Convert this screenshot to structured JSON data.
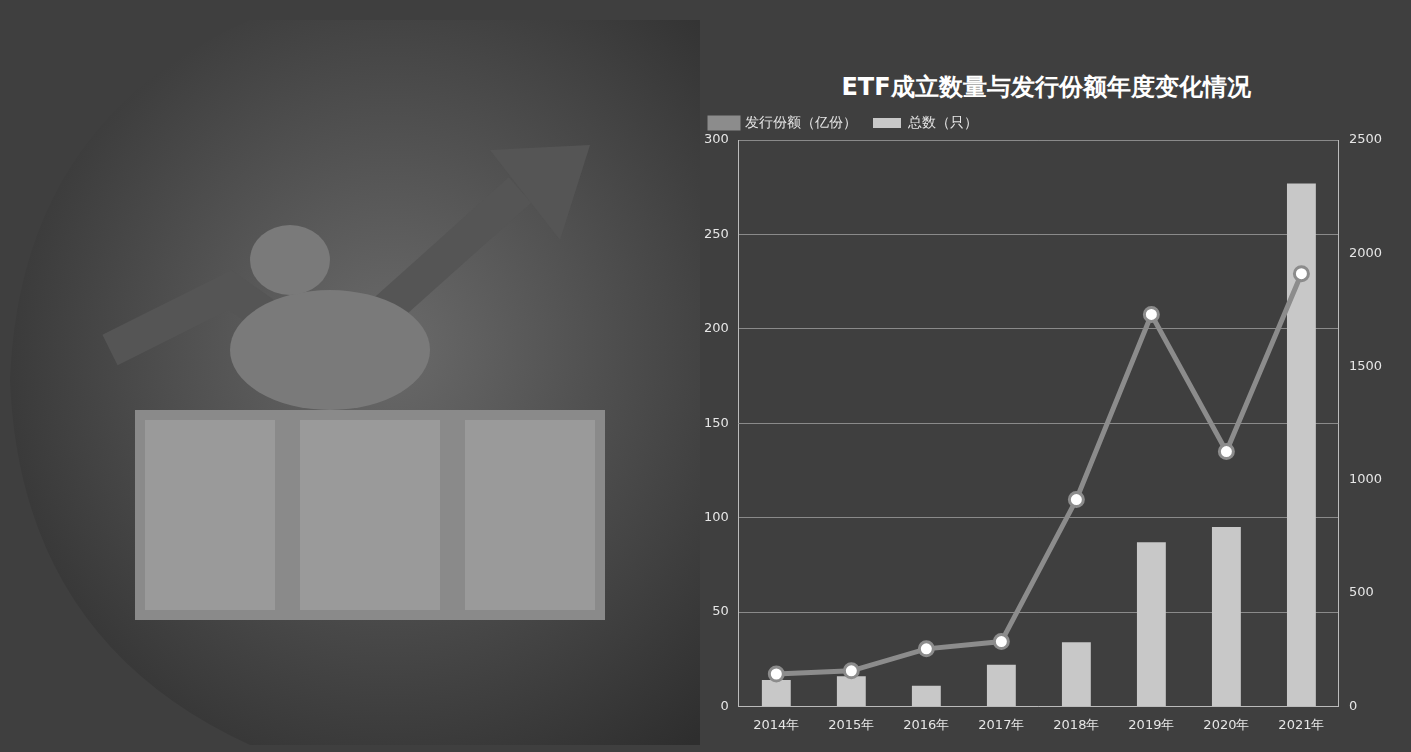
{
  "chart_data": {
    "type": "bar",
    "title": "ETF成立数量与发行份额年度变化情况",
    "categories": [
      "2014年",
      "2015年",
      "2016年",
      "2017年",
      "2018年",
      "2019年",
      "2020年",
      "2021年"
    ],
    "series": [
      {
        "name": "总数（只）",
        "type": "bar",
        "color": "#c8c8c8",
        "values": [
          14,
          16,
          11,
          22,
          34,
          87,
          95,
          277
        ]
      },
      {
        "name": "发行份额（亿份）",
        "type": "line",
        "axis": "y2",
        "color": "#8c8c8c",
        "marker": "circle",
        "values": [
          143,
          157,
          254,
          286,
          913,
          1730,
          1125,
          1910
        ]
      }
    ],
    "ylim": [
      0,
      300
    ],
    "yticks": [
      0,
      50,
      100,
      150,
      200,
      250,
      300
    ],
    "y2lim": [
      0,
      2500
    ],
    "y2ticks": [
      0,
      500,
      1000,
      1500,
      2000,
      2500
    ],
    "grid": true,
    "legend": "top"
  }
}
